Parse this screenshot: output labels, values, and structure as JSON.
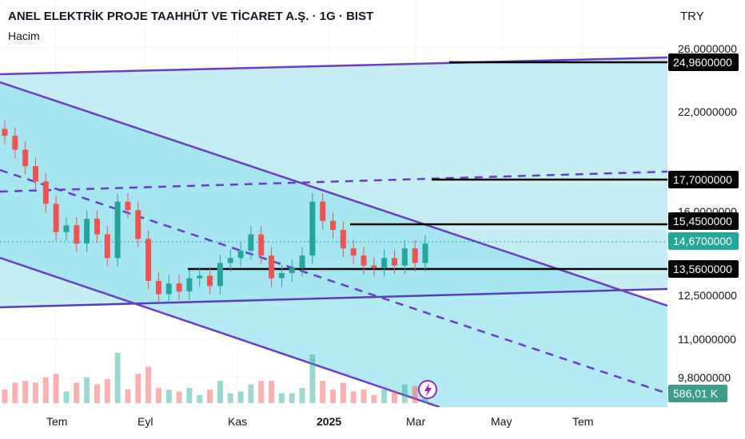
{
  "header": {
    "title": "ANEL ELEKTRİK PROJE TAAHHÜT VE TİCARET A.Ş. · 1G · BIST",
    "indicator": "Hacim",
    "currency": "TRY"
  },
  "colors": {
    "up": "#26a69a",
    "down": "#ef5350",
    "channel_line": "#6a3cc8",
    "channel_fill_outer": "#c5edf3",
    "channel_fill_inner": "#99e3ef",
    "level_line": "#000000",
    "volume_badge": "#3d9c8c"
  },
  "chart_data": {
    "type": "candlestick",
    "symbol": "ANEL ELEKTRİK PROJE TAAHHÜT VE TİCARET A.Ş.",
    "timeframe": "1G",
    "exchange": "BIST",
    "y_axis_labels": [
      "26,0000000",
      "22,0000000",
      "16,0000000",
      "12,5000000",
      "11,0000000",
      "9,8000000"
    ],
    "x_axis_labels": [
      "Tem",
      "Eyl",
      "Kas",
      "2025",
      "Mar",
      "May",
      "Tem"
    ],
    "price_labels": [
      {
        "label": "24,9600000",
        "value": 24.96
      },
      {
        "label": "17,7000000",
        "value": 17.7
      },
      {
        "label": "15,4500000",
        "value": 15.45
      },
      {
        "label": "14,6700000",
        "value": 14.67
      },
      {
        "label": "13,5600000",
        "value": 13.56
      }
    ],
    "horizontal_levels": [
      24.96,
      17.7,
      15.45,
      13.56
    ],
    "current_price": 14.67,
    "volume_label": "586,01 K",
    "scale": "log",
    "approx_close_series": [
      20.0,
      19.2,
      18.3,
      17.5,
      16.4,
      15.1,
      15.4,
      14.6,
      15.7,
      15.0,
      14.0,
      16.5,
      16.1,
      14.8,
      13.1,
      12.6,
      13.0,
      12.7,
      13.2,
      13.3,
      12.9,
      13.8,
      14.0,
      14.3,
      15.0,
      14.1,
      13.2,
      13.4,
      13.6,
      14.1,
      16.5,
      15.6,
      15.2,
      14.4,
      14.1,
      13.7,
      13.6,
      14.0,
      13.7,
      14.4,
      13.8,
      14.6
    ]
  }
}
